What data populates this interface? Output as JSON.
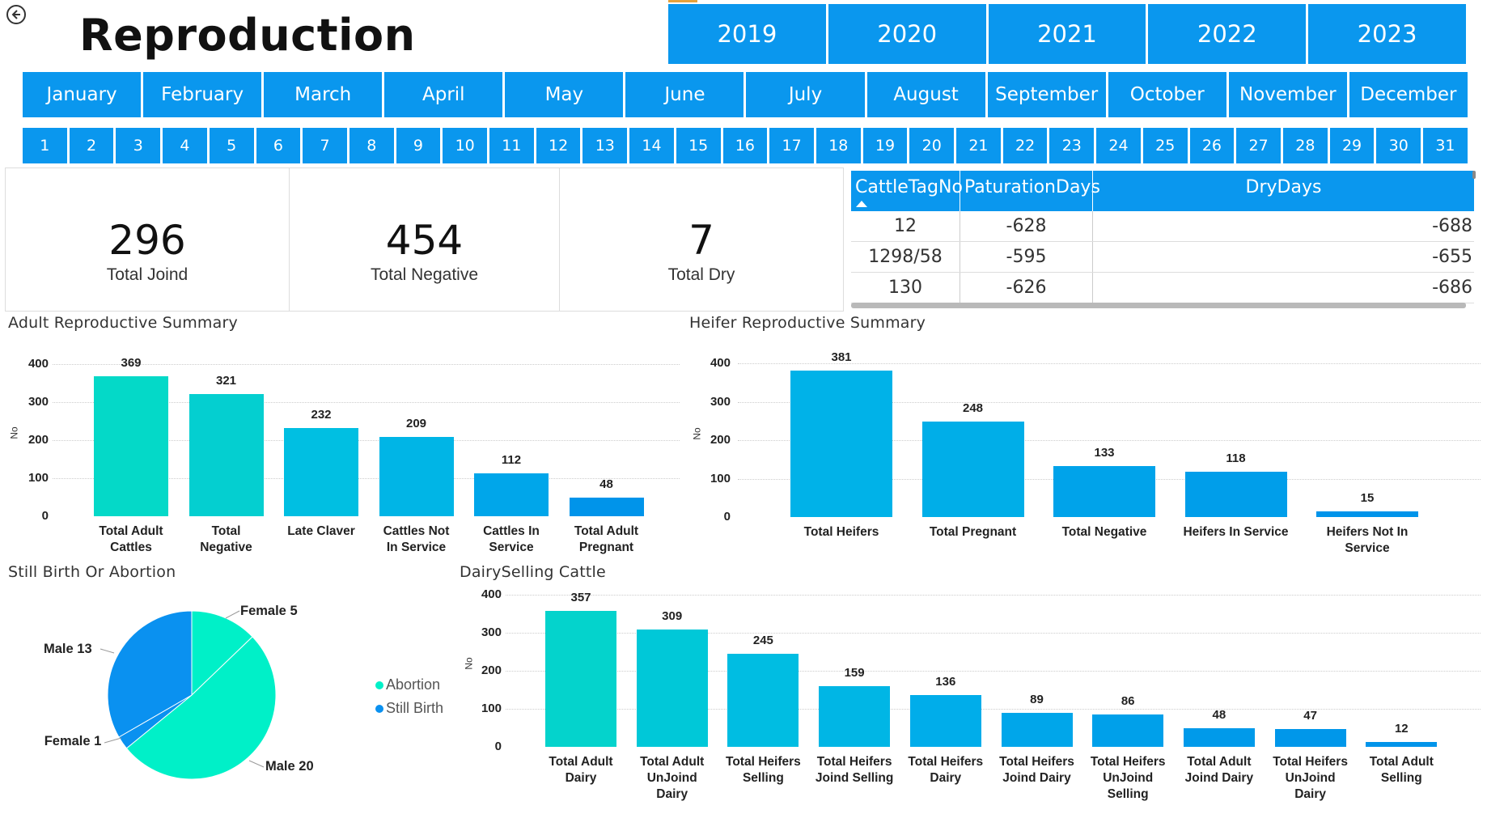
{
  "header": {
    "title": "Reproduction",
    "back_icon": "back-arrow-icon"
  },
  "years": [
    "2019",
    "2020",
    "2021",
    "2022",
    "2023"
  ],
  "months": [
    "January",
    "February",
    "March",
    "April",
    "May",
    "June",
    "July",
    "August",
    "September",
    "October",
    "November",
    "December"
  ],
  "days": [
    "1",
    "2",
    "3",
    "4",
    "5",
    "6",
    "7",
    "8",
    "9",
    "10",
    "11",
    "12",
    "13",
    "14",
    "15",
    "16",
    "17",
    "18",
    "19",
    "20",
    "21",
    "22",
    "23",
    "24",
    "25",
    "26",
    "27",
    "28",
    "29",
    "30",
    "31"
  ],
  "kpis": [
    {
      "value": "296",
      "label": "Total Joind"
    },
    {
      "value": "454",
      "label": "Total Negative"
    },
    {
      "value": "7",
      "label": "Total Dry"
    }
  ],
  "table": {
    "columns": [
      "CattleTagNo",
      "PaturationDays",
      "DryDays"
    ],
    "rows": [
      [
        "12",
        "-628",
        "-688"
      ],
      [
        "1298/58",
        "-595",
        "-655"
      ],
      [
        "130",
        "-626",
        "-686"
      ]
    ]
  },
  "colors": {
    "accent": "#0a97ee",
    "teal": "#04d9c8",
    "cyan": "#00b2e8",
    "blue": "#0094ea",
    "pie_abortion": "#00f0c8",
    "pie_still": "#0a91f0"
  },
  "chart_data": [
    {
      "type": "bar",
      "title": "Adult Reproductive Summary",
      "ylabel": "No",
      "ylim": [
        0,
        400
      ],
      "yticks": [
        0,
        100,
        200,
        300,
        400
      ],
      "categories": [
        "Total Adult\nCattles",
        "Total\nNegative",
        "Late Claver",
        "Cattles Not\nIn Service",
        "Cattles In\nService",
        "Total Adult\nPregnant"
      ],
      "values": [
        369,
        321,
        232,
        209,
        112,
        48
      ]
    },
    {
      "type": "bar",
      "title": "Heifer Reproductive Summary",
      "ylabel": "No",
      "ylim": [
        0,
        400
      ],
      "yticks": [
        0,
        100,
        200,
        300,
        400
      ],
      "categories": [
        "Total Heifers",
        "Total Pregnant",
        "Total Negative",
        "Heifers In Service",
        "Heifers Not In\nService"
      ],
      "values": [
        381,
        248,
        133,
        118,
        15
      ]
    },
    {
      "type": "pie",
      "title": "Still Birth Or Abortion",
      "legend": [
        "Abortion",
        "Still Birth"
      ],
      "slices": [
        {
          "label": "Female 5",
          "value": 5,
          "series": "Abortion"
        },
        {
          "label": "Male 20",
          "value": 20,
          "series": "Abortion"
        },
        {
          "label": "Female 1",
          "value": 1,
          "series": "Still Birth"
        },
        {
          "label": "Male 13",
          "value": 13,
          "series": "Still Birth"
        }
      ]
    },
    {
      "type": "bar",
      "title": "DairySelling Cattle",
      "ylabel": "No",
      "ylim": [
        0,
        400
      ],
      "yticks": [
        0,
        100,
        200,
        300,
        400
      ],
      "categories": [
        "Total Adult\nDairy",
        "Total Adult\nUnJoind\nDairy",
        "Total Heifers\nSelling",
        "Total Heifers\nJoind Selling",
        "Total Heifers\nDairy",
        "Total Heifers\nJoind Dairy",
        "Total Heifers\nUnJoind\nSelling",
        "Total Adult\nJoind Dairy",
        "Total Heifers\nUnJoind\nDairy",
        "Total Adult\nSelling"
      ],
      "values": [
        357,
        309,
        245,
        159,
        136,
        89,
        86,
        48,
        47,
        12
      ]
    }
  ]
}
